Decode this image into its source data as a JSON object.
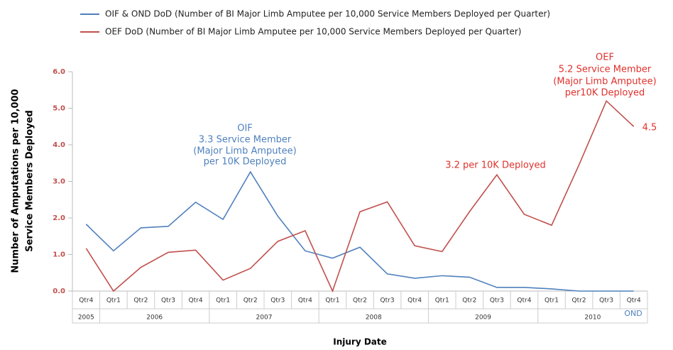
{
  "chart_data": {
    "type": "line",
    "legend": "top",
    "ylabel": [
      "Number of Amputations per 10,000",
      "Service Members Deployed"
    ],
    "xlabel": "Injury Date",
    "category_groups": [
      {
        "label": "2005",
        "categories": [
          "Qtr4"
        ]
      },
      {
        "label": "2006",
        "categories": [
          "Qtr1",
          "Qtr2",
          "Qtr3",
          "Qtr4"
        ]
      },
      {
        "label": "2007",
        "categories": [
          "Qtr1",
          "Qtr2",
          "Qtr3",
          "Qtr4"
        ]
      },
      {
        "label": "2008",
        "categories": [
          "Qtr1",
          "Qtr2",
          "Qtr3",
          "Qtr4"
        ]
      },
      {
        "label": "2009",
        "categories": [
          "Qtr1",
          "Qtr2",
          "Qtr3",
          "Qtr4"
        ]
      },
      {
        "label": "2010",
        "categories": [
          "Qtr1",
          "Qtr2",
          "Qtr3",
          "Qtr4"
        ]
      }
    ],
    "ylim": [
      0,
      6
    ],
    "yticks": [
      {
        "value": 0,
        "label": "0.0"
      },
      {
        "value": 1,
        "label": "1.0"
      },
      {
        "value": 2,
        "label": "2.0"
      },
      {
        "value": 3,
        "label": "3.0"
      },
      {
        "value": 4,
        "label": "4.0"
      },
      {
        "value": 5,
        "label": "5.0"
      },
      {
        "value": 6,
        "label": "6.0"
      }
    ],
    "series": [
      {
        "name": "OIF & OND DoD (Number of BI Major Limb Amputee per 10,000  Service Members Deployed per Quarter)",
        "color": "#4f81bd",
        "values": [
          1.83,
          1.1,
          1.73,
          1.77,
          2.43,
          1.96,
          3.26,
          2.05,
          1.1,
          0.9,
          1.2,
          0.47,
          0.35,
          0.42,
          0.38,
          0.1,
          0.1,
          0.06,
          0,
          0,
          0
        ]
      },
      {
        "name": "OEF DoD (Number of BI Major Limb Amputee per 10,000  Service Members Deployed per Quarter)",
        "color": "#c0504d",
        "values": [
          1.17,
          0,
          0.65,
          1.06,
          1.12,
          0.3,
          0.62,
          1.36,
          1.65,
          0,
          2.17,
          2.44,
          1.24,
          1.08,
          2.17,
          3.18,
          2.1,
          1.8,
          3.45,
          5.2,
          4.5
        ]
      }
    ],
    "annotations": [
      {
        "text": "OIF",
        "color": "#4f81bd"
      },
      {
        "text": "3.3 Service Member",
        "color": "#4f81bd"
      },
      {
        "text": "(Major Limb Amputee)",
        "color": "#4f81bd"
      },
      {
        "text": "per 10K Deployed",
        "color": "#4f81bd"
      },
      {
        "text": "3.2 per 10K Deployed",
        "color": "#e0312b"
      },
      {
        "text": "OEF",
        "color": "#e0312b"
      },
      {
        "text": "5.2 Service Member",
        "color": "#e0312b"
      },
      {
        "text": "(Major Limb Amputee)",
        "color": "#e0312b"
      },
      {
        "text": "per10K Deployed",
        "color": "#e0312b"
      },
      {
        "text": "4.5",
        "color": "#e0312b"
      },
      {
        "text": "OND",
        "color": "#4f81bd"
      }
    ]
  }
}
